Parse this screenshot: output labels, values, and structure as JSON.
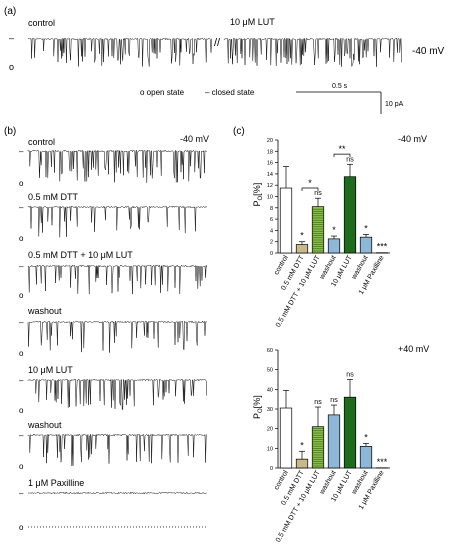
{
  "panel_a": {
    "letter": "(a)",
    "label_control": "control",
    "label_lut": "10 μM LUT",
    "voltage": "-40 mV",
    "legend_open": "o  open state",
    "legend_closed": "–  closed state",
    "scale_time": "0.5 s",
    "scale_current": "10 pA",
    "marker_closed": "–",
    "marker_open": "o"
  },
  "panel_b": {
    "letter": "(b)",
    "voltage": "-40 mV",
    "marker_closed": "–",
    "marker_open": "o",
    "traces": [
      {
        "label": "control"
      },
      {
        "label": "0.5 mM DTT"
      },
      {
        "label": "0.5 mM DTT + 10 μM LUT"
      },
      {
        "label": "washout"
      },
      {
        "label": "10 μM LUT"
      },
      {
        "label": "washout"
      },
      {
        "label": "1 μM Paxilline"
      }
    ]
  },
  "panel_c": {
    "letter": "(c)"
  },
  "colors": {
    "control": "#ffffff",
    "dtt": "#c8b98a",
    "dtt_lut": "#8cc04a",
    "washout": "#8fb8d8",
    "lut": "#1d6b1d",
    "paxilline": "#ffffff",
    "stroke": "#000000"
  },
  "chart_data": [
    {
      "type": "bar",
      "voltage_label": "-40 mV",
      "ylabel": "P",
      "ylabel_sub": "O",
      "ylabel_unit": "[%]",
      "ylim": [
        0,
        20
      ],
      "yticks": [
        "0",
        "2",
        "4",
        "6",
        "8",
        "10",
        "12",
        "14",
        "16",
        "18",
        "20"
      ],
      "categories": [
        "control",
        "0.5 mM DTT",
        "0.5 mM DTT + 10 μM LUT",
        "washout",
        "10 μM LUT",
        "washout",
        "1 μM Paxilline"
      ],
      "values": [
        11.5,
        1.5,
        8.2,
        2.5,
        13.5,
        2.8,
        0.05
      ],
      "errors": [
        3.8,
        0.5,
        1.5,
        0.5,
        2.2,
        0.5,
        0
      ],
      "marks": [
        "",
        "*",
        "ns",
        "*",
        "ns",
        "*",
        "***"
      ],
      "brackets": [
        {
          "from": 1,
          "to": 2,
          "label": "*",
          "y": 11.5
        },
        {
          "from": 3,
          "to": 4,
          "label": "**",
          "y": 17.5
        }
      ]
    },
    {
      "type": "bar",
      "voltage_label": "+40 mV",
      "ylabel": "P",
      "ylabel_sub": "O",
      "ylabel_unit": "[%]",
      "ylim": [
        0,
        60
      ],
      "yticks": [
        "0",
        "10",
        "20",
        "30",
        "40",
        "50",
        "60"
      ],
      "categories": [
        "control",
        "0.5 mM DTT",
        "0.5 mM DTT + 10 μM LUT",
        "washout",
        "10 μM LUT",
        "washout",
        "1 μM Paxilline"
      ],
      "values": [
        30.5,
        4.5,
        21,
        27,
        36,
        11,
        0.1
      ],
      "errors": [
        9,
        4,
        10,
        5,
        9,
        1.5,
        0
      ],
      "marks": [
        "",
        "*",
        "ns",
        "ns",
        "ns",
        "*",
        "***"
      ],
      "brackets": []
    }
  ]
}
